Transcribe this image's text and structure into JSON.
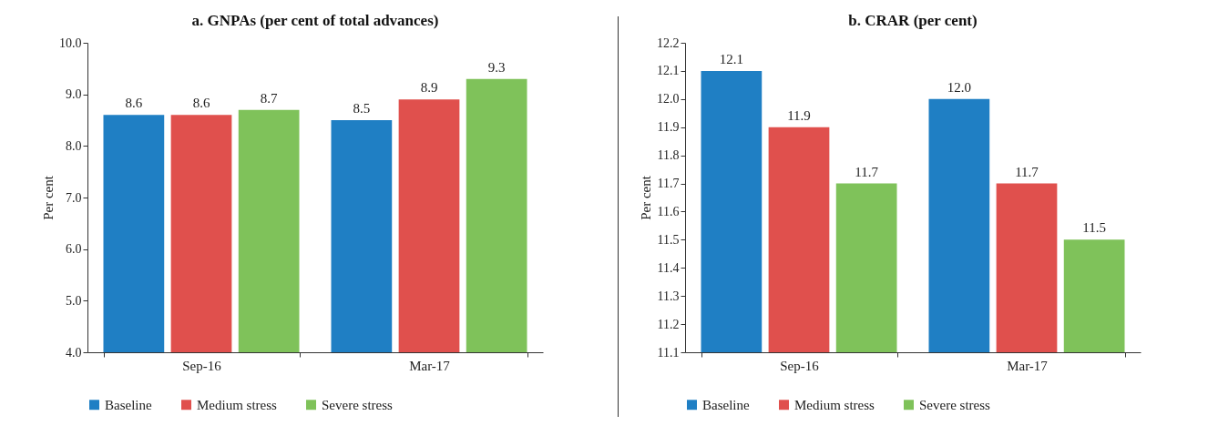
{
  "chart_data": [
    {
      "type": "bar",
      "title": "a. GNPAs (per cent of total advances)",
      "ylabel": "Per  cent",
      "categories": [
        "Sep-16",
        "Mar-17"
      ],
      "series": [
        {
          "name": "Baseline",
          "color": "#1f7fc4",
          "values": [
            8.6,
            8.5
          ],
          "value_labels": [
            "8.6",
            "8.5"
          ]
        },
        {
          "name": "Medium stress",
          "color": "#e0504d",
          "values": [
            8.6,
            8.9
          ],
          "value_labels": [
            "8.6",
            "8.9"
          ]
        },
        {
          "name": "Severe stress",
          "color": "#7fc25a",
          "values": [
            8.7,
            9.3
          ],
          "value_labels": [
            "8.7",
            "9.3"
          ]
        }
      ],
      "ylim": [
        4,
        10
      ],
      "yticks": [
        {
          "value": 4,
          "label": "4.0"
        },
        {
          "value": 5,
          "label": "5.0"
        },
        {
          "value": 6,
          "label": "6.0"
        },
        {
          "value": 7,
          "label": "7.0"
        },
        {
          "value": 8,
          "label": "8.0"
        },
        {
          "value": 9,
          "label": "9.0"
        },
        {
          "value": 10,
          "label": "10.0"
        }
      ],
      "legend": "bottom",
      "grid": false
    },
    {
      "type": "bar",
      "title": "b. CRAR (per cent)",
      "ylabel": "Per cent",
      "categories": [
        "Sep-16",
        "Mar-17"
      ],
      "series": [
        {
          "name": "Baseline",
          "color": "#1f7fc4",
          "values": [
            12.1,
            12.0
          ],
          "value_labels": [
            "12.1",
            "12.0"
          ]
        },
        {
          "name": "Medium stress",
          "color": "#e0504d",
          "values": [
            11.9,
            11.7
          ],
          "value_labels": [
            "11.9",
            "11.7"
          ]
        },
        {
          "name": "Severe stress",
          "color": "#7fc25a",
          "values": [
            11.7,
            11.5
          ],
          "value_labels": [
            "11.7",
            "11.5"
          ]
        }
      ],
      "ylim": [
        11.1,
        12.2
      ],
      "yticks": [
        11.1,
        11.2,
        11.3,
        11.4,
        11.5,
        11.6,
        11.7,
        11.8,
        11.9,
        {
          "value": 12,
          "label": "12.0"
        },
        12.1,
        12.2
      ],
      "legend": "bottom",
      "grid": false
    }
  ]
}
